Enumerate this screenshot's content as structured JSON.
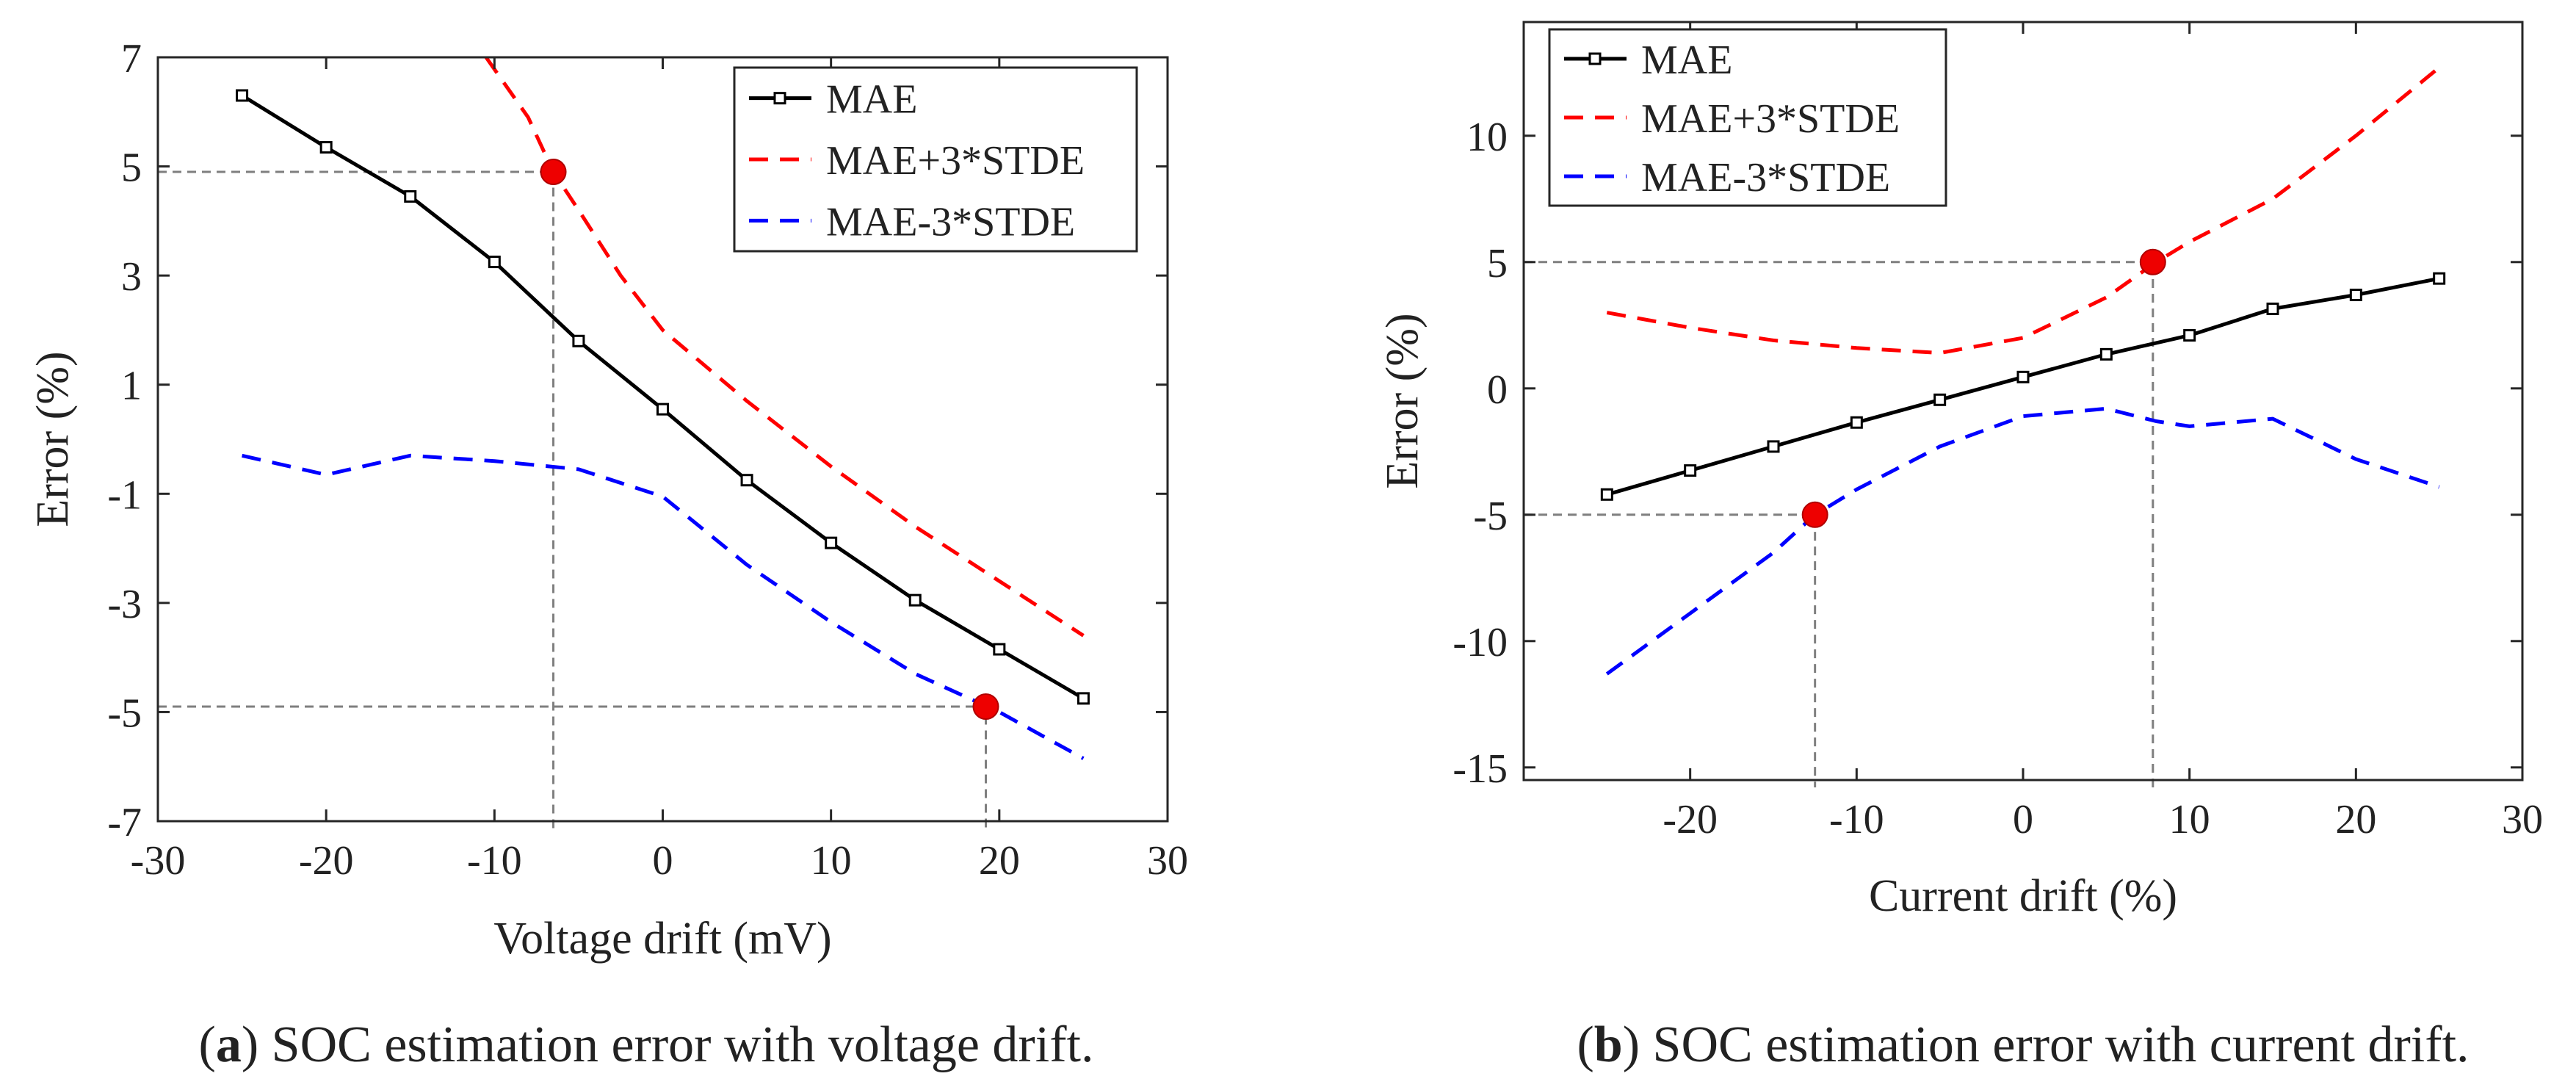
{
  "colors": {
    "mae": "#000000",
    "plus": "#ff0000",
    "minus": "#0000ff",
    "marker": "#ee0000",
    "guide": "#7f7f7f"
  },
  "chart_data": [
    {
      "type": "line",
      "caption_prefix": "(",
      "caption_letter": "a",
      "caption_rest": ") SOC estimation error with voltage drift.",
      "xlabel": "Voltage drift (mV)",
      "ylabel": "Error (%)",
      "xlim": [
        -30,
        30
      ],
      "ylim": [
        -7,
        7
      ],
      "xticks": [
        -30,
        -20,
        -10,
        0,
        10,
        20,
        30
      ],
      "yticks": [
        -7,
        -5,
        -3,
        -1,
        1,
        3,
        5,
        7
      ],
      "xtick_labels": [
        "-30",
        "-20",
        "-10",
        "0",
        "10",
        "20",
        "30"
      ],
      "ytick_labels": [
        "-7",
        "-5",
        "-3",
        "-1",
        "1",
        "3",
        "5",
        "7"
      ],
      "legend_position": "top-right",
      "series": [
        {
          "name": "MAE",
          "style": "solid-square",
          "x": [
            -25,
            -20,
            -15,
            -10,
            -5,
            0,
            5,
            10,
            15,
            20,
            25
          ],
          "y": [
            6.3,
            5.35,
            4.45,
            3.25,
            1.8,
            0.55,
            -0.75,
            -1.9,
            -2.95,
            -3.85,
            -4.75
          ]
        },
        {
          "name": "MAE+3*STDE",
          "style": "dashed",
          "x": [
            -10.5,
            -8,
            -6.5,
            -5,
            -2.5,
            0,
            5,
            10,
            15,
            20,
            25
          ],
          "y": [
            7.0,
            5.9,
            4.9,
            4.2,
            3.0,
            2.0,
            0.7,
            -0.5,
            -1.6,
            -2.6,
            -3.6
          ]
        },
        {
          "name": "MAE-3*STDE",
          "style": "dashed",
          "x": [
            -25,
            -20,
            -15,
            -10,
            -5,
            0,
            5,
            10,
            15,
            20,
            25
          ],
          "y": [
            -0.3,
            -0.65,
            -0.3,
            -0.4,
            -0.55,
            -1.05,
            -2.3,
            -3.35,
            -4.3,
            -5.0,
            -5.85
          ]
        }
      ],
      "highlights": [
        {
          "x": -6.5,
          "y": 4.9
        },
        {
          "x": 19.2,
          "y": -4.9
        }
      ]
    },
    {
      "type": "line",
      "caption_prefix": "(",
      "caption_letter": "b",
      "caption_rest": ") SOC estimation error with current drift.",
      "xlabel": "Current drift (%)",
      "ylabel": "Error (%)",
      "xlim": [
        -30,
        30
      ],
      "ylim": [
        -15.5,
        14.5
      ],
      "xticks": [
        -20,
        -10,
        0,
        10,
        20,
        30
      ],
      "yticks": [
        -15,
        -10,
        -5,
        0,
        5,
        10
      ],
      "xtick_labels": [
        "-20",
        "-10",
        "0",
        "10",
        "20",
        "30"
      ],
      "ytick_labels": [
        "-15",
        "-10",
        "-5",
        "0",
        "5",
        "10"
      ],
      "legend_position": "top-left",
      "series": [
        {
          "name": "MAE",
          "style": "solid-square",
          "x": [
            -25,
            -20,
            -15,
            -10,
            -5,
            0,
            5,
            10,
            15,
            20,
            25
          ],
          "y": [
            -4.2,
            -3.25,
            -2.3,
            -1.35,
            -0.45,
            0.45,
            1.35,
            2.1,
            3.15,
            3.7,
            4.35
          ]
        },
        {
          "name": "MAE+3*STDE",
          "style": "dashed",
          "x": [
            -25,
            -20,
            -15,
            -10,
            -5,
            0,
            5,
            8,
            10,
            15,
            20,
            25
          ],
          "y": [
            3.0,
            2.4,
            1.9,
            1.6,
            1.4,
            2.0,
            3.6,
            5.0,
            5.8,
            7.5,
            10.0,
            12.7
          ]
        },
        {
          "name": "MAE-3*STDE",
          "style": "dashed",
          "x": [
            -25,
            -20,
            -15,
            -12.5,
            -10,
            -5,
            0,
            5,
            8,
            10,
            15,
            20,
            25
          ],
          "y": [
            -11.3,
            -8.9,
            -6.5,
            -5.0,
            -4.0,
            -2.3,
            -1.1,
            -0.8,
            -1.3,
            -1.5,
            -1.2,
            -2.8,
            -3.9
          ]
        }
      ],
      "highlights": [
        {
          "x": 7.8,
          "y": 5.0
        },
        {
          "x": -12.5,
          "y": -5.0
        }
      ]
    }
  ]
}
